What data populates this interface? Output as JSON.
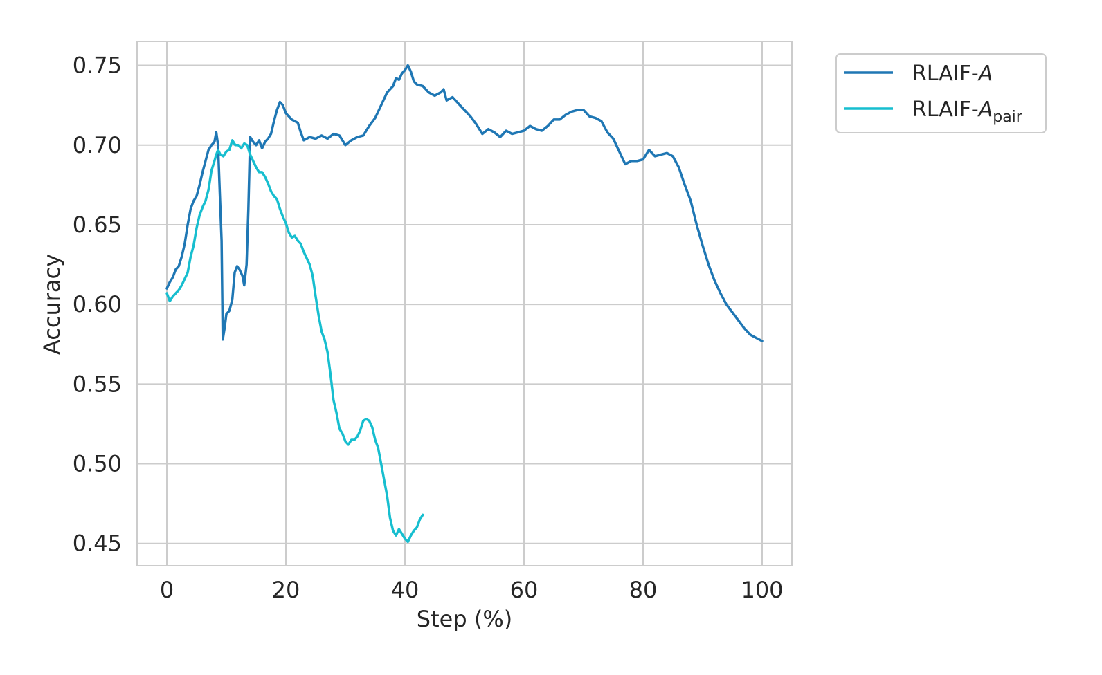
{
  "chart_data": {
    "type": "line",
    "title": "",
    "xlabel": "Step (%)",
    "ylabel": "Accuracy",
    "xlim": [
      -5,
      105
    ],
    "ylim": [
      0.436,
      0.765
    ],
    "xticks": [
      0,
      20,
      40,
      60,
      80,
      100
    ],
    "yticks": [
      0.45,
      0.5,
      0.55,
      0.6,
      0.65,
      0.7,
      0.75
    ],
    "xtick_labels": [
      "0",
      "20",
      "40",
      "60",
      "80",
      "100"
    ],
    "ytick_labels": [
      "0.45",
      "0.50",
      "0.55",
      "0.60",
      "0.65",
      "0.70",
      "0.75"
    ],
    "grid": true,
    "legend_position": "outside-top-right",
    "series": [
      {
        "name": "RLAIF-A",
        "legend_prefix": "RLAIF-",
        "legend_italic": "A",
        "legend_sub": "",
        "color": "#1f77b4",
        "points": [
          [
            0,
            0.61
          ],
          [
            0.5,
            0.614
          ],
          [
            1,
            0.617
          ],
          [
            1.5,
            0.622
          ],
          [
            2,
            0.624
          ],
          [
            2.5,
            0.63
          ],
          [
            3,
            0.638
          ],
          [
            3.5,
            0.65
          ],
          [
            4,
            0.66
          ],
          [
            4.5,
            0.665
          ],
          [
            5,
            0.668
          ],
          [
            5.5,
            0.675
          ],
          [
            6,
            0.683
          ],
          [
            6.5,
            0.69
          ],
          [
            7,
            0.697
          ],
          [
            7.5,
            0.7
          ],
          [
            8,
            0.702
          ],
          [
            8.3,
            0.708
          ],
          [
            8.6,
            0.7
          ],
          [
            8.9,
            0.67
          ],
          [
            9.2,
            0.64
          ],
          [
            9.4,
            0.578
          ],
          [
            9.7,
            0.585
          ],
          [
            10,
            0.594
          ],
          [
            10.5,
            0.596
          ],
          [
            11,
            0.603
          ],
          [
            11.4,
            0.62
          ],
          [
            11.8,
            0.624
          ],
          [
            12.2,
            0.622
          ],
          [
            12.7,
            0.618
          ],
          [
            13,
            0.612
          ],
          [
            13.4,
            0.625
          ],
          [
            13.7,
            0.66
          ],
          [
            14,
            0.705
          ],
          [
            14.5,
            0.702
          ],
          [
            15,
            0.7
          ],
          [
            15.5,
            0.703
          ],
          [
            16,
            0.698
          ],
          [
            16.5,
            0.702
          ],
          [
            17,
            0.704
          ],
          [
            17.5,
            0.707
          ],
          [
            18,
            0.715
          ],
          [
            18.5,
            0.722
          ],
          [
            19,
            0.727
          ],
          [
            19.5,
            0.725
          ],
          [
            20,
            0.72
          ],
          [
            21,
            0.716
          ],
          [
            22,
            0.714
          ],
          [
            22.5,
            0.708
          ],
          [
            23,
            0.703
          ],
          [
            24,
            0.705
          ],
          [
            25,
            0.704
          ],
          [
            26,
            0.706
          ],
          [
            27,
            0.704
          ],
          [
            28,
            0.707
          ],
          [
            29,
            0.706
          ],
          [
            30,
            0.7
          ],
          [
            31,
            0.703
          ],
          [
            32,
            0.705
          ],
          [
            33,
            0.706
          ],
          [
            34,
            0.712
          ],
          [
            35,
            0.717
          ],
          [
            36,
            0.725
          ],
          [
            37,
            0.733
          ],
          [
            38,
            0.737
          ],
          [
            38.5,
            0.742
          ],
          [
            39,
            0.741
          ],
          [
            39.5,
            0.745
          ],
          [
            40,
            0.747
          ],
          [
            40.5,
            0.75
          ],
          [
            41,
            0.746
          ],
          [
            41.5,
            0.74
          ],
          [
            42,
            0.738
          ],
          [
            43,
            0.737
          ],
          [
            44,
            0.733
          ],
          [
            45,
            0.731
          ],
          [
            46,
            0.733
          ],
          [
            46.5,
            0.735
          ],
          [
            47,
            0.728
          ],
          [
            48,
            0.73
          ],
          [
            49,
            0.726
          ],
          [
            50,
            0.722
          ],
          [
            51,
            0.718
          ],
          [
            52,
            0.713
          ],
          [
            53,
            0.707
          ],
          [
            54,
            0.71
          ],
          [
            55,
            0.708
          ],
          [
            56,
            0.705
          ],
          [
            57,
            0.709
          ],
          [
            58,
            0.707
          ],
          [
            59,
            0.708
          ],
          [
            60,
            0.709
          ],
          [
            61,
            0.712
          ],
          [
            62,
            0.71
          ],
          [
            63,
            0.709
          ],
          [
            64,
            0.712
          ],
          [
            65,
            0.716
          ],
          [
            66,
            0.716
          ],
          [
            67,
            0.719
          ],
          [
            68,
            0.721
          ],
          [
            69,
            0.722
          ],
          [
            70,
            0.722
          ],
          [
            71,
            0.718
          ],
          [
            72,
            0.717
          ],
          [
            73,
            0.715
          ],
          [
            74,
            0.708
          ],
          [
            75,
            0.704
          ],
          [
            76,
            0.696
          ],
          [
            77,
            0.688
          ],
          [
            78,
            0.69
          ],
          [
            79,
            0.69
          ],
          [
            80,
            0.691
          ],
          [
            81,
            0.697
          ],
          [
            82,
            0.693
          ],
          [
            83,
            0.694
          ],
          [
            84,
            0.695
          ],
          [
            85,
            0.693
          ],
          [
            86,
            0.686
          ],
          [
            87,
            0.675
          ],
          [
            88,
            0.665
          ],
          [
            89,
            0.65
          ],
          [
            90,
            0.637
          ],
          [
            91,
            0.625
          ],
          [
            92,
            0.615
          ],
          [
            93,
            0.607
          ],
          [
            94,
            0.6
          ],
          [
            95,
            0.595
          ],
          [
            96,
            0.59
          ],
          [
            97,
            0.585
          ],
          [
            98,
            0.581
          ],
          [
            99,
            0.579
          ],
          [
            100,
            0.577
          ]
        ]
      },
      {
        "name": "RLAIF-Apair",
        "legend_prefix": "RLAIF-",
        "legend_italic": "A",
        "legend_sub": "pair",
        "color": "#17becf",
        "points": [
          [
            0,
            0.607
          ],
          [
            0.5,
            0.602
          ],
          [
            1,
            0.605
          ],
          [
            1.5,
            0.607
          ],
          [
            2,
            0.609
          ],
          [
            2.5,
            0.612
          ],
          [
            3,
            0.616
          ],
          [
            3.5,
            0.62
          ],
          [
            4,
            0.63
          ],
          [
            4.5,
            0.637
          ],
          [
            5,
            0.648
          ],
          [
            5.5,
            0.656
          ],
          [
            6,
            0.661
          ],
          [
            6.5,
            0.665
          ],
          [
            7,
            0.672
          ],
          [
            7.5,
            0.684
          ],
          [
            8,
            0.69
          ],
          [
            8.3,
            0.694
          ],
          [
            8.6,
            0.697
          ],
          [
            9,
            0.694
          ],
          [
            9.5,
            0.693
          ],
          [
            10,
            0.696
          ],
          [
            10.5,
            0.697
          ],
          [
            11,
            0.703
          ],
          [
            11.5,
            0.7
          ],
          [
            12,
            0.7
          ],
          [
            12.5,
            0.698
          ],
          [
            13,
            0.701
          ],
          [
            13.5,
            0.7
          ],
          [
            14,
            0.694
          ],
          [
            14.5,
            0.69
          ],
          [
            15,
            0.686
          ],
          [
            15.5,
            0.683
          ],
          [
            16,
            0.683
          ],
          [
            16.5,
            0.68
          ],
          [
            17,
            0.676
          ],
          [
            17.5,
            0.671
          ],
          [
            18,
            0.668
          ],
          [
            18.5,
            0.666
          ],
          [
            19,
            0.66
          ],
          [
            19.5,
            0.655
          ],
          [
            20,
            0.651
          ],
          [
            20.5,
            0.645
          ],
          [
            21,
            0.642
          ],
          [
            21.5,
            0.643
          ],
          [
            22,
            0.64
          ],
          [
            22.5,
            0.638
          ],
          [
            23,
            0.633
          ],
          [
            23.5,
            0.629
          ],
          [
            24,
            0.625
          ],
          [
            24.5,
            0.618
          ],
          [
            25,
            0.605
          ],
          [
            25.5,
            0.593
          ],
          [
            26,
            0.583
          ],
          [
            26.5,
            0.578
          ],
          [
            27,
            0.57
          ],
          [
            27.5,
            0.556
          ],
          [
            28,
            0.54
          ],
          [
            28.5,
            0.532
          ],
          [
            29,
            0.522
          ],
          [
            29.5,
            0.519
          ],
          [
            30,
            0.514
          ],
          [
            30.5,
            0.512
          ],
          [
            31,
            0.515
          ],
          [
            31.5,
            0.515
          ],
          [
            32,
            0.517
          ],
          [
            32.5,
            0.521
          ],
          [
            33,
            0.527
          ],
          [
            33.5,
            0.528
          ],
          [
            34,
            0.527
          ],
          [
            34.5,
            0.523
          ],
          [
            35,
            0.515
          ],
          [
            35.5,
            0.51
          ],
          [
            36,
            0.5
          ],
          [
            36.5,
            0.49
          ],
          [
            37,
            0.48
          ],
          [
            37.5,
            0.466
          ],
          [
            38,
            0.458
          ],
          [
            38.5,
            0.455
          ],
          [
            39,
            0.459
          ],
          [
            39.5,
            0.456
          ],
          [
            40,
            0.453
          ],
          [
            40.5,
            0.451
          ],
          [
            41,
            0.455
          ],
          [
            41.5,
            0.458
          ],
          [
            42,
            0.46
          ],
          [
            42.5,
            0.465
          ],
          [
            43,
            0.468
          ]
        ]
      }
    ]
  }
}
